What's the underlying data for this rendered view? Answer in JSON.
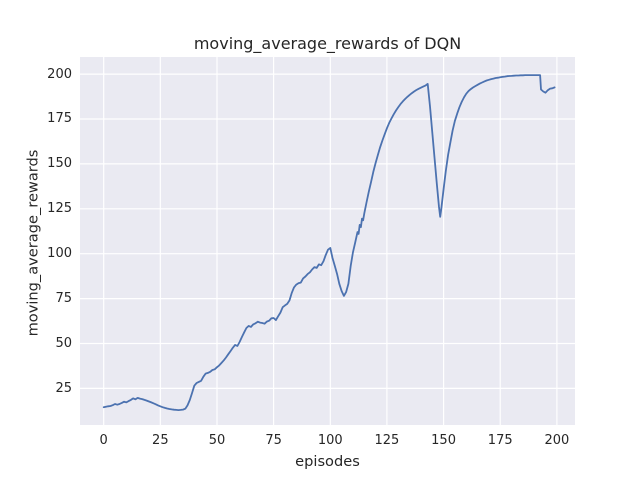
{
  "colors": {
    "figure_background": "#ffffff",
    "axes_background": "#eaeaf2",
    "grid": "#ffffff",
    "line": "#4c72b0",
    "text": "#262626"
  },
  "chart_data": {
    "type": "line",
    "title": "moving_average_rewards of DQN",
    "xlabel": "episodes",
    "ylabel": "moving_average_rewards",
    "legend": null,
    "grid": true,
    "x_ticks": [
      0,
      25,
      50,
      75,
      100,
      125,
      150,
      175,
      200
    ],
    "y_ticks": [
      25,
      50,
      75,
      100,
      125,
      150,
      175,
      200
    ],
    "xlim": [
      -10.45,
      208.0
    ],
    "ylim": [
      4.6,
      209.5
    ],
    "series": [
      {
        "name": "moving_average_rewards",
        "points": [
          [
            0,
            14.5
          ],
          [
            1,
            14.8
          ],
          [
            2,
            15.0
          ],
          [
            3,
            15.2
          ],
          [
            4,
            15.6
          ],
          [
            5,
            16.3
          ],
          [
            6,
            15.9
          ],
          [
            7,
            16.3
          ],
          [
            8,
            16.9
          ],
          [
            9,
            17.6
          ],
          [
            10,
            17.2
          ],
          [
            11,
            17.9
          ],
          [
            12,
            18.6
          ],
          [
            13,
            19.4
          ],
          [
            14,
            18.9
          ],
          [
            15,
            19.7
          ],
          [
            16,
            19.3
          ],
          [
            17,
            19.0
          ],
          [
            18,
            18.6
          ],
          [
            19,
            18.2
          ],
          [
            20,
            17.7
          ],
          [
            21,
            17.2
          ],
          [
            22,
            16.7
          ],
          [
            23,
            16.1
          ],
          [
            24,
            15.5
          ],
          [
            25,
            15.0
          ],
          [
            26,
            14.5
          ],
          [
            27,
            14.1
          ],
          [
            28,
            13.8
          ],
          [
            29,
            13.5
          ],
          [
            30,
            13.3
          ],
          [
            31,
            13.1
          ],
          [
            32,
            13.0
          ],
          [
            33,
            12.9
          ],
          [
            34,
            13.0
          ],
          [
            35,
            13.2
          ],
          [
            36,
            13.7
          ],
          [
            37,
            15.5
          ],
          [
            38,
            18.5
          ],
          [
            39,
            22.5
          ],
          [
            40,
            26.5
          ],
          [
            41,
            28.0
          ],
          [
            42,
            28.6
          ],
          [
            43,
            29.2
          ],
          [
            44,
            31.5
          ],
          [
            45,
            33.2
          ],
          [
            46,
            33.6
          ],
          [
            47,
            34.2
          ],
          [
            48,
            35.2
          ],
          [
            49,
            35.6
          ],
          [
            50,
            36.8
          ],
          [
            51,
            37.8
          ],
          [
            52,
            39.2
          ],
          [
            53,
            40.6
          ],
          [
            54,
            42.2
          ],
          [
            55,
            44.0
          ],
          [
            56,
            45.8
          ],
          [
            57,
            47.6
          ],
          [
            58,
            49.2
          ],
          [
            59,
            48.6
          ],
          [
            60,
            50.8
          ],
          [
            61,
            53.6
          ],
          [
            62,
            56.2
          ],
          [
            63,
            58.6
          ],
          [
            64,
            59.8
          ],
          [
            65,
            59.2
          ],
          [
            66,
            60.6
          ],
          [
            67,
            61.2
          ],
          [
            68,
            62.1
          ],
          [
            69,
            61.6
          ],
          [
            70,
            61.4
          ],
          [
            71,
            61.0
          ],
          [
            72,
            62.2
          ],
          [
            73,
            62.7
          ],
          [
            74,
            64.0
          ],
          [
            75,
            64.2
          ],
          [
            76,
            63.0
          ],
          [
            77,
            65.2
          ],
          [
            78,
            67.2
          ],
          [
            79,
            70.2
          ],
          [
            80,
            71.2
          ],
          [
            81,
            72.0
          ],
          [
            82,
            74.0
          ],
          [
            83,
            78.2
          ],
          [
            84,
            81.2
          ],
          [
            85,
            82.8
          ],
          [
            86,
            83.6
          ],
          [
            87,
            83.9
          ],
          [
            88,
            86.2
          ],
          [
            89,
            87.3
          ],
          [
            90,
            88.6
          ],
          [
            91,
            89.6
          ],
          [
            92,
            91.2
          ],
          [
            93,
            92.5
          ],
          [
            94,
            92.1
          ],
          [
            95,
            94.0
          ],
          [
            96,
            93.6
          ],
          [
            97,
            95.8
          ],
          [
            98,
            99.2
          ],
          [
            99,
            102.2
          ],
          [
            100,
            103.2
          ],
          [
            101,
            97.6
          ],
          [
            102,
            93.2
          ],
          [
            103,
            88.6
          ],
          [
            104,
            83.2
          ],
          [
            105,
            79.2
          ],
          [
            106,
            76.5
          ],
          [
            107,
            78.6
          ],
          [
            108,
            83.2
          ],
          [
            109,
            93.2
          ],
          [
            110,
            100.6
          ],
          [
            111,
            106.2
          ],
          [
            112,
            112.0
          ],
          [
            112.5,
            111.0
          ],
          [
            113,
            116.0
          ],
          [
            113.5,
            114.8
          ],
          [
            114,
            119.5
          ],
          [
            114.5,
            118.6
          ],
          [
            115,
            122.5
          ],
          [
            116,
            128.5
          ],
          [
            117,
            134.5
          ],
          [
            118,
            140.0
          ],
          [
            119,
            145.5
          ],
          [
            120,
            150.5
          ],
          [
            121,
            155.0
          ],
          [
            122,
            159.2
          ],
          [
            123,
            163.0
          ],
          [
            124,
            166.5
          ],
          [
            125,
            169.8
          ],
          [
            126,
            172.8
          ],
          [
            127,
            175.3
          ],
          [
            128,
            177.6
          ],
          [
            129,
            179.7
          ],
          [
            130,
            181.6
          ],
          [
            131,
            183.3
          ],
          [
            132,
            184.8
          ],
          [
            133,
            186.1
          ],
          [
            134,
            187.3
          ],
          [
            135,
            188.4
          ],
          [
            136,
            189.4
          ],
          [
            137,
            190.3
          ],
          [
            138,
            191.1
          ],
          [
            139,
            191.8
          ],
          [
            140,
            192.4
          ],
          [
            141,
            193.0
          ],
          [
            142,
            193.6
          ],
          [
            143,
            194.5
          ],
          [
            144,
            182.0
          ],
          [
            145,
            168.0
          ],
          [
            146,
            153.5
          ],
          [
            147,
            139.0
          ],
          [
            148,
            126.0
          ],
          [
            148.5,
            120.5
          ],
          [
            149,
            125.0
          ],
          [
            150,
            136.0
          ],
          [
            151,
            146.0
          ],
          [
            152,
            155.0
          ],
          [
            153,
            162.0
          ],
          [
            154,
            168.5
          ],
          [
            155,
            174.0
          ],
          [
            156,
            178.0
          ],
          [
            157,
            181.5
          ],
          [
            158,
            184.5
          ],
          [
            159,
            187.0
          ],
          [
            160,
            189.0
          ],
          [
            161,
            190.5
          ],
          [
            162,
            191.6
          ],
          [
            163,
            192.5
          ],
          [
            164,
            193.3
          ],
          [
            165,
            194.0
          ],
          [
            166,
            194.7
          ],
          [
            167,
            195.3
          ],
          [
            168,
            195.9
          ],
          [
            169,
            196.4
          ],
          [
            170,
            196.8
          ],
          [
            171,
            197.2
          ],
          [
            172,
            197.5
          ],
          [
            173,
            197.8
          ],
          [
            174,
            198.0
          ],
          [
            175,
            198.2
          ],
          [
            176,
            198.4
          ],
          [
            177,
            198.6
          ],
          [
            178,
            198.8
          ],
          [
            179,
            198.9
          ],
          [
            180,
            199.0
          ],
          [
            181,
            199.1
          ],
          [
            182,
            199.2
          ],
          [
            183,
            199.2
          ],
          [
            184,
            199.3
          ],
          [
            185,
            199.3
          ],
          [
            186,
            199.4
          ],
          [
            187,
            199.4
          ],
          [
            188,
            199.4
          ],
          [
            189,
            199.4
          ],
          [
            190,
            199.4
          ],
          [
            191,
            199.4
          ],
          [
            192,
            199.4
          ],
          [
            192.6,
            199.4
          ],
          [
            193,
            191.4
          ],
          [
            194,
            190.3
          ],
          [
            195,
            189.6
          ],
          [
            196,
            191.0
          ],
          [
            197,
            191.9
          ],
          [
            198,
            192.1
          ],
          [
            199,
            192.6
          ]
        ]
      }
    ]
  }
}
